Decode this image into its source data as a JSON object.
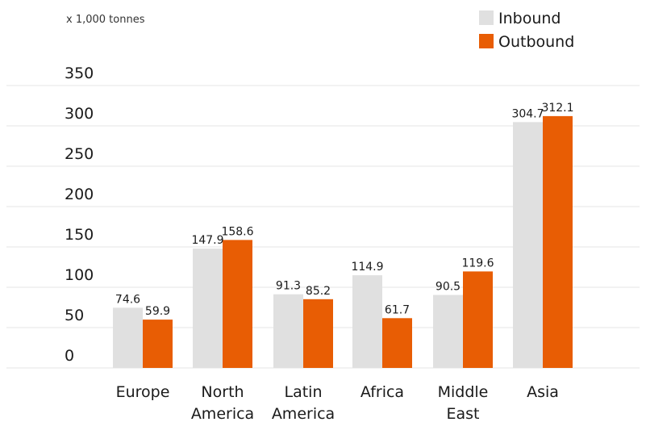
{
  "chart_data": {
    "type": "bar",
    "unit_label": "x 1,000 tonnes",
    "categories": [
      [
        "Europe"
      ],
      [
        "North",
        "America"
      ],
      [
        "Latin",
        "America"
      ],
      [
        "Africa"
      ],
      [
        "Middle",
        "East"
      ],
      [
        "Asia"
      ]
    ],
    "series": [
      {
        "name": "Inbound",
        "values": [
          74.6,
          147.9,
          91.3,
          114.9,
          90.5,
          304.7
        ],
        "labels": [
          "74.6",
          "147.9",
          "91.3",
          "114.9",
          "90.5",
          "304.7"
        ],
        "color": "#e0e0e0"
      },
      {
        "name": "Outbound",
        "values": [
          59.9,
          158.6,
          85.2,
          61.7,
          119.6,
          312.1
        ],
        "labels": [
          "59.9",
          "158.6",
          "85.2",
          "61.7",
          "119.6",
          "312.1"
        ],
        "color": "#e85d04"
      }
    ],
    "yticks": [
      "350",
      "300",
      "250",
      "200",
      "150",
      "100",
      "50",
      "0"
    ],
    "ylim": [
      0,
      350
    ],
    "legend": "top-right",
    "grid": true
  }
}
